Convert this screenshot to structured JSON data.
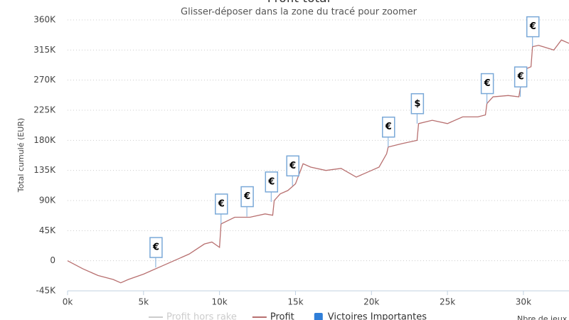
{
  "chart_data": {
    "type": "line",
    "title": "Profit total",
    "subtitle": "Glisser-déposer dans la zone du tracé pour zoomer",
    "y_label": "Total cumulé (EUR)",
    "x_label": "Nbre de jeux",
    "xlim": [
      0,
      33000
    ],
    "ylim": [
      -45000,
      360000
    ],
    "xticks": [
      {
        "value": 0,
        "label": "0k"
      },
      {
        "value": 5000,
        "label": "5k"
      },
      {
        "value": 10000,
        "label": "10k"
      },
      {
        "value": 15000,
        "label": "15k"
      },
      {
        "value": 20000,
        "label": "20k"
      },
      {
        "value": 25000,
        "label": "25k"
      },
      {
        "value": 30000,
        "label": "30k"
      }
    ],
    "yticks": [
      {
        "value": -45000,
        "label": "-45K"
      },
      0,
      {
        "value": 45000,
        "label": "45K"
      },
      {
        "value": 90000,
        "label": "90K"
      },
      {
        "value": 135000,
        "label": "135K"
      },
      {
        "value": 180000,
        "label": "180K"
      },
      {
        "value": 225000,
        "label": "225K"
      },
      {
        "value": 270000,
        "label": "270K"
      },
      {
        "value": 315000,
        "label": "315K"
      },
      {
        "value": 360000,
        "label": "360K"
      }
    ],
    "grid": true,
    "legend": [
      {
        "name": "Profit hors rake",
        "color": "#cccccc",
        "symbol": "line"
      },
      {
        "name": "Profit",
        "color": "#b87070",
        "symbol": "line"
      },
      {
        "name": "Victoires Importantes",
        "color": "#2f7ed8",
        "symbol": "square"
      }
    ],
    "series": [
      {
        "name": "Profit",
        "color": "#b87070",
        "x": [
          0,
          1000,
          2000,
          3000,
          3500,
          4000,
          5000,
          5500,
          6000,
          7000,
          8000,
          9000,
          9500,
          10000,
          10100,
          11000,
          12000,
          13000,
          13500,
          13600,
          14000,
          14500,
          15000,
          15500,
          16000,
          17000,
          18000,
          19000,
          20000,
          20500,
          21000,
          21100,
          22000,
          23000,
          23100,
          24000,
          25000,
          26000,
          27000,
          27500,
          27600,
          28000,
          29000,
          29700,
          30000,
          30500,
          30600,
          31000,
          32000,
          32500,
          33000
        ],
        "values": [
          0,
          -12000,
          -22000,
          -28000,
          -33000,
          -28000,
          -20000,
          -15000,
          -10000,
          0,
          10000,
          25000,
          28000,
          20000,
          55000,
          65000,
          65000,
          70000,
          68000,
          90000,
          100000,
          105000,
          115000,
          145000,
          140000,
          135000,
          138000,
          125000,
          135000,
          140000,
          160000,
          170000,
          175000,
          180000,
          205000,
          210000,
          205000,
          215000,
          215000,
          218000,
          235000,
          245000,
          247000,
          245000,
          285000,
          290000,
          320000,
          322000,
          315000,
          330000,
          325000
        ]
      }
    ],
    "flags": [
      {
        "title": "€",
        "x": 5800,
        "y": -10000
      },
      {
        "title": "€",
        "x": 10100,
        "y": 55000
      },
      {
        "title": "€",
        "x": 11800,
        "y": 66000
      },
      {
        "title": "€",
        "x": 13400,
        "y": 88000
      },
      {
        "title": "€",
        "x": 14800,
        "y": 112000
      },
      {
        "title": "€",
        "x": 21100,
        "y": 170000
      },
      {
        "title": "$",
        "x": 23000,
        "y": 205000
      },
      {
        "title": "€",
        "x": 27600,
        "y": 235000
      },
      {
        "title": "€",
        "x": 29800,
        "y": 245000
      },
      {
        "title": "€",
        "x": 30600,
        "y": 320000
      }
    ]
  }
}
